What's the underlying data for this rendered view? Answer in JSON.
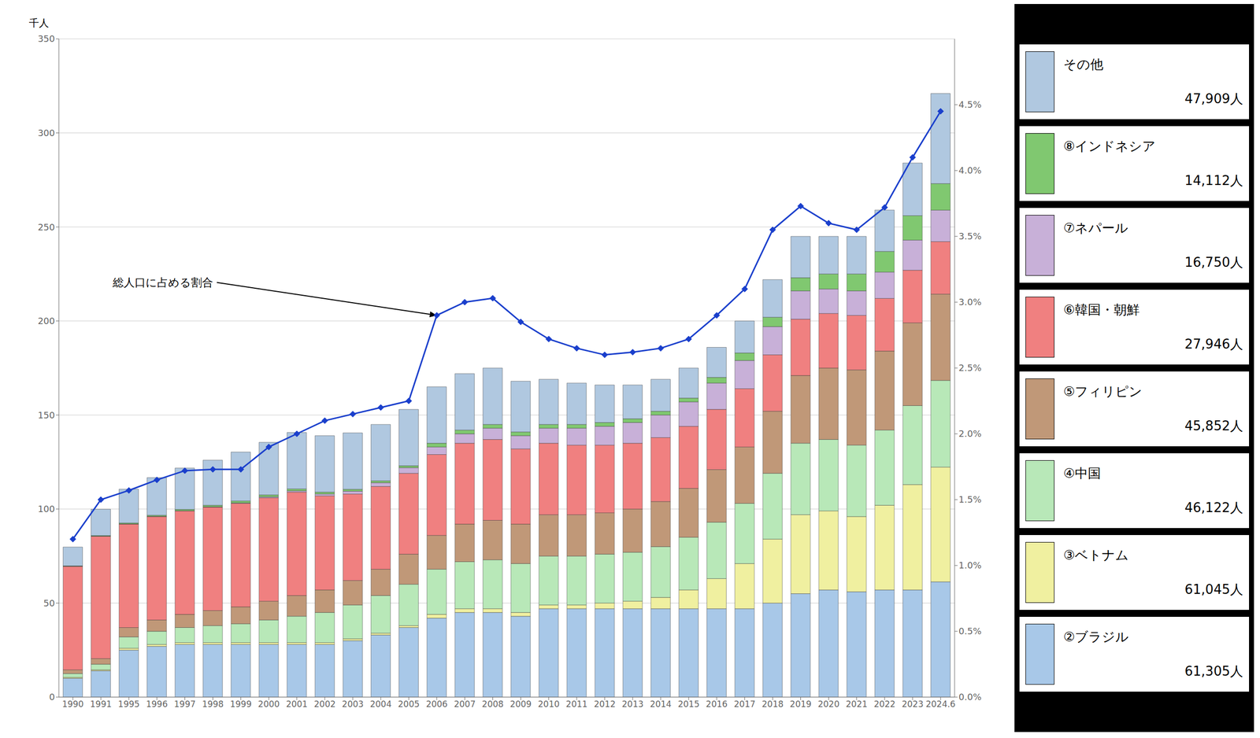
{
  "chart_data": {
    "type": "bar",
    "stacked": true,
    "grid": true,
    "legend": "right",
    "ylabel": "千人",
    "annotation": "総人口に占める割合",
    "categories": [
      "1990",
      "1991",
      "1995",
      "1996",
      "1997",
      "1998",
      "1999",
      "2000",
      "2001",
      "2002",
      "2003",
      "2004",
      "2005",
      "2006",
      "2007",
      "2008",
      "2009",
      "2010",
      "2011",
      "2012",
      "2013",
      "2014",
      "2015",
      "2016",
      "2017",
      "2018",
      "2019",
      "2020",
      "2021",
      "2022",
      "2023",
      "2024.6"
    ],
    "ylim": [
      0,
      350
    ],
    "yticks": [
      0,
      50,
      100,
      150,
      200,
      250,
      300,
      350
    ],
    "y2lim": [
      0,
      5
    ],
    "y2ticks": [
      {
        "value": 0,
        "label": "0.0%"
      },
      {
        "value": 0.5,
        "label": "0.5%"
      },
      {
        "value": 1,
        "label": "1.0%"
      },
      {
        "value": 1.5,
        "label": "1.5%"
      },
      {
        "value": 2,
        "label": "2.0%"
      },
      {
        "value": 2.5,
        "label": "2.5%"
      },
      {
        "value": 3,
        "label": "3.0%"
      },
      {
        "value": 3.5,
        "label": "3.5%"
      },
      {
        "value": 4,
        "label": "4.0%"
      },
      {
        "value": 4.5,
        "label": "4.5%"
      }
    ],
    "series": [
      {
        "name": "②ブラジル",
        "legend_value": "61,305人",
        "type": "bar",
        "color": "#a8c8e8",
        "values": [
          10,
          14,
          25,
          27,
          28,
          28,
          28,
          28,
          28,
          28,
          30,
          33,
          37,
          42,
          45,
          45,
          43,
          47,
          47,
          47,
          47,
          47,
          47,
          47,
          47,
          50,
          55,
          57,
          56,
          57,
          57,
          61.3
        ]
      },
      {
        "name": "③ベトナム",
        "legend_value": "61,045人",
        "type": "bar",
        "color": "#f0f0a0",
        "values": [
          0.5,
          0.5,
          1,
          1,
          1,
          1,
          1,
          1,
          1,
          1,
          1,
          1,
          1,
          2,
          2,
          2,
          2,
          2,
          2,
          3,
          4,
          6,
          10,
          16,
          24,
          34,
          42,
          42,
          40,
          45,
          56,
          61.0
        ]
      },
      {
        "name": "④中国",
        "legend_value": "46,122人",
        "type": "bar",
        "color": "#b8e8b8",
        "values": [
          2,
          3,
          6,
          7,
          8,
          9,
          10,
          12,
          14,
          16,
          18,
          20,
          22,
          24,
          25,
          26,
          26,
          26,
          26,
          26,
          26,
          27,
          28,
          30,
          32,
          35,
          38,
          38,
          38,
          40,
          42,
          46.1
        ]
      },
      {
        "name": "⑤フィリピン",
        "legend_value": "45,852人",
        "type": "bar",
        "color": "#c09878",
        "values": [
          2,
          3,
          5,
          6,
          7,
          8,
          9,
          10,
          11,
          12,
          13,
          14,
          16,
          18,
          20,
          21,
          21,
          22,
          22,
          22,
          23,
          24,
          26,
          28,
          30,
          33,
          36,
          38,
          40,
          42,
          44,
          45.9
        ]
      },
      {
        "name": "⑥韓国・朝鮮",
        "legend_value": "27,946人",
        "type": "bar",
        "color": "#f08080",
        "values": [
          55,
          65,
          55,
          55,
          55,
          55,
          55,
          55,
          55,
          50,
          46,
          44,
          43,
          43,
          43,
          43,
          40,
          38,
          37,
          36,
          35,
          34,
          33,
          32,
          31,
          30,
          30,
          29,
          29,
          28,
          28,
          27.9
        ]
      },
      {
        "name": "⑦ネパール",
        "legend_value": "16,750人",
        "type": "bar",
        "color": "#c8b0d8",
        "values": [
          0.1,
          0.1,
          0.1,
          0.1,
          0.1,
          0.2,
          0.3,
          0.5,
          0.7,
          1,
          1.5,
          2,
          3,
          4,
          5,
          6,
          7,
          8,
          9,
          10,
          11,
          12,
          13,
          14,
          15,
          15,
          15,
          13,
          13,
          14,
          16,
          16.75
        ]
      },
      {
        "name": "⑧インドネシア",
        "legend_value": "14,112人",
        "type": "bar",
        "color": "#80c870",
        "values": [
          0.2,
          0.3,
          0.5,
          0.6,
          0.7,
          0.8,
          1,
          1,
          1,
          1,
          1,
          1,
          1,
          2,
          2,
          2,
          2,
          2,
          2,
          2,
          2,
          2,
          2,
          3,
          4,
          5,
          7,
          8,
          9,
          11,
          13,
          14.1
        ]
      },
      {
        "name": "その他",
        "legend_value": "47,909人",
        "type": "bar",
        "color": "#b0c8e0",
        "values": [
          10,
          14,
          18,
          20,
          22,
          24,
          26,
          28,
          30,
          30,
          30,
          30,
          30,
          30,
          30,
          30,
          27,
          24,
          22,
          20,
          18,
          17,
          16,
          16,
          17,
          20,
          22,
          20,
          20,
          22,
          28,
          47.9
        ]
      },
      {
        "type": "line",
        "axis": "y2",
        "color": "#1a3fcc",
        "marker": "diamond",
        "values": [
          1.2,
          1.5,
          1.57,
          1.65,
          1.72,
          1.73,
          1.73,
          1.9,
          2.0,
          2.1,
          2.15,
          2.2,
          2.25,
          2.9,
          3.0,
          3.03,
          2.85,
          2.72,
          2.65,
          2.6,
          2.62,
          2.65,
          2.72,
          2.9,
          3.1,
          3.55,
          3.73,
          3.6,
          3.55,
          3.72,
          4.1,
          4.45
        ]
      }
    ]
  }
}
